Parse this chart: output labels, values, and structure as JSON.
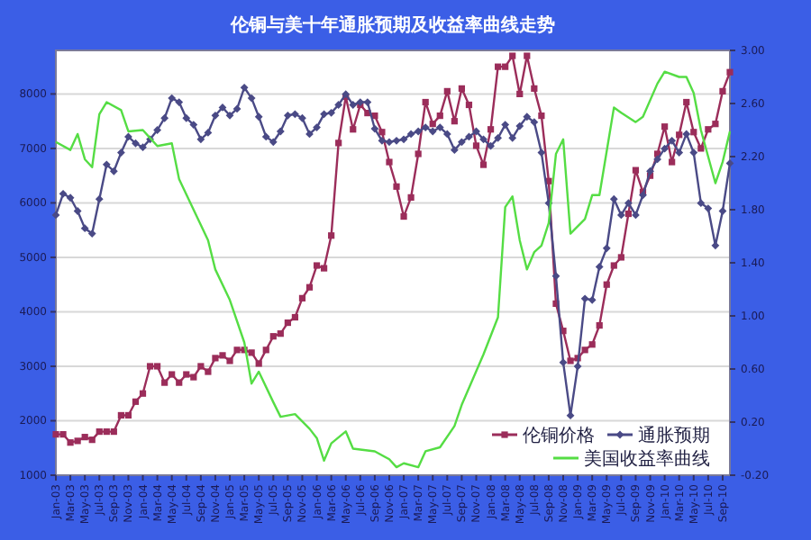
{
  "chart_data": {
    "type": "line",
    "title": "伦铜与美十年通胀预期及收益率曲线走势",
    "grid": "y",
    "legend": "bottom right",
    "xlim": [
      "2003-01",
      "2010-10"
    ],
    "xticks": [
      {
        "value": "2003-01",
        "label": "Jan-03"
      },
      {
        "value": "2003-03",
        "label": "Mar-03"
      },
      {
        "value": "2003-05",
        "label": "May-03"
      },
      {
        "value": "2003-07",
        "label": "Jul-03"
      },
      {
        "value": "2003-09",
        "label": "Sep-03"
      },
      {
        "value": "2003-11",
        "label": "Nov-03"
      },
      {
        "value": "2004-01",
        "label": "Jan-04"
      },
      {
        "value": "2004-03",
        "label": "Mar-04"
      },
      {
        "value": "2004-05",
        "label": "May-04"
      },
      {
        "value": "2004-07",
        "label": "Jul-04"
      },
      {
        "value": "2004-09",
        "label": "Sep-04"
      },
      {
        "value": "2004-11",
        "label": "Nov-04"
      },
      {
        "value": "2005-01",
        "label": "Jan-05"
      },
      {
        "value": "2005-03",
        "label": "Mar-05"
      },
      {
        "value": "2005-05",
        "label": "May-05"
      },
      {
        "value": "2005-07",
        "label": "Jul-05"
      },
      {
        "value": "2005-09",
        "label": "Sep-05"
      },
      {
        "value": "2005-11",
        "label": "Nov-05"
      },
      {
        "value": "2006-01",
        "label": "Jan-06"
      },
      {
        "value": "2006-03",
        "label": "Mar-06"
      },
      {
        "value": "2006-05",
        "label": "May-06"
      },
      {
        "value": "2006-07",
        "label": "Jul-06"
      },
      {
        "value": "2006-09",
        "label": "Sep-06"
      },
      {
        "value": "2006-11",
        "label": "Nov-06"
      },
      {
        "value": "2007-01",
        "label": "Jan-07"
      },
      {
        "value": "2007-03",
        "label": "Mar-07"
      },
      {
        "value": "2007-05",
        "label": "May-07"
      },
      {
        "value": "2007-07",
        "label": "Jul-07"
      },
      {
        "value": "2007-09",
        "label": "Sep-07"
      },
      {
        "value": "2007-11",
        "label": "Nov-07"
      },
      {
        "value": "2008-01",
        "label": "Jan-08"
      },
      {
        "value": "2008-03",
        "label": "Mar-08"
      },
      {
        "value": "2008-05",
        "label": "May-08"
      },
      {
        "value": "2008-07",
        "label": "Jul-08"
      },
      {
        "value": "2008-09",
        "label": "Sep-08"
      },
      {
        "value": "2008-11",
        "label": "Nov-08"
      },
      {
        "value": "2009-01",
        "label": "Jan-09"
      },
      {
        "value": "2009-03",
        "label": "Mar-09"
      },
      {
        "value": "2009-05",
        "label": "May-09"
      },
      {
        "value": "2009-07",
        "label": "Jul-09"
      },
      {
        "value": "2009-09",
        "label": "Sep-09"
      },
      {
        "value": "2009-11",
        "label": "Nov-09"
      },
      {
        "value": "2010-01",
        "label": "Jan-10"
      },
      {
        "value": "2010-03",
        "label": "Mar-10"
      },
      {
        "value": "2010-05",
        "label": "May-10"
      },
      {
        "value": "2010-07",
        "label": "Jul-10"
      },
      {
        "value": "2010-09",
        "label": "Sep-10"
      }
    ],
    "ylim": [
      1000,
      8800
    ],
    "yticks": [
      1000,
      2000,
      3000,
      4000,
      5000,
      6000,
      7000,
      8000
    ],
    "y2lim": [
      -0.2,
      3.0
    ],
    "y2ticks": [
      {
        "value": -0.2,
        "label": "-0.20"
      },
      {
        "value": 0.2,
        "label": "0.20"
      },
      {
        "value": 0.6,
        "label": "0.60"
      },
      {
        "value": 1.0,
        "label": "1.00"
      },
      {
        "value": 1.4,
        "label": "1.40"
      },
      {
        "value": 1.8,
        "label": "1.80"
      },
      {
        "value": 2.2,
        "label": "2.20"
      },
      {
        "value": 2.6,
        "label": "2.60"
      },
      {
        "value": 3.0,
        "label": "3.00"
      }
    ],
    "x": [
      "2003-01",
      "2003-02",
      "2003-03",
      "2003-04",
      "2003-05",
      "2003-06",
      "2003-07",
      "2003-08",
      "2003-09",
      "2003-10",
      "2003-11",
      "2003-12",
      "2004-01",
      "2004-02",
      "2004-03",
      "2004-04",
      "2004-05",
      "2004-06",
      "2004-07",
      "2004-08",
      "2004-09",
      "2004-10",
      "2004-11",
      "2004-12",
      "2005-01",
      "2005-02",
      "2005-03",
      "2005-04",
      "2005-05",
      "2005-06",
      "2005-07",
      "2005-08",
      "2005-09",
      "2005-10",
      "2005-11",
      "2005-12",
      "2006-01",
      "2006-02",
      "2006-03",
      "2006-04",
      "2006-05",
      "2006-06",
      "2006-07",
      "2006-08",
      "2006-09",
      "2006-10",
      "2006-11",
      "2006-12",
      "2007-01",
      "2007-02",
      "2007-03",
      "2007-04",
      "2007-05",
      "2007-06",
      "2007-07",
      "2007-08",
      "2007-09",
      "2007-10",
      "2007-11",
      "2007-12",
      "2008-01",
      "2008-02",
      "2008-03",
      "2008-04",
      "2008-05",
      "2008-06",
      "2008-07",
      "2008-08",
      "2008-09",
      "2008-10",
      "2008-11",
      "2008-12",
      "2009-01",
      "2009-02",
      "2009-03",
      "2009-04",
      "2009-05",
      "2009-06",
      "2009-07",
      "2009-08",
      "2009-09",
      "2009-10",
      "2009-11",
      "2009-12",
      "2010-01",
      "2010-02",
      "2010-03",
      "2010-04",
      "2010-05",
      "2010-06",
      "2010-07",
      "2010-08",
      "2010-09",
      "2010-10"
    ],
    "series": [
      {
        "name": "伦铜价格",
        "color": "#9b2d5a",
        "marker": "square",
        "values": [
          1750,
          1750,
          1600,
          1630,
          1700,
          1650,
          1800,
          1800,
          1800,
          2100,
          2100,
          2350,
          2500,
          3000,
          3000,
          2700,
          2850,
          2700,
          2850,
          2800,
          3000,
          2900,
          3150,
          3200,
          3100,
          3300,
          3300,
          3250,
          3050,
          3300,
          3550,
          3600,
          3800,
          3900,
          4250,
          4450,
          4850,
          4800,
          5400,
          7100,
          7950,
          7350,
          7800,
          7650,
          7600,
          7300,
          6750,
          6300,
          5750,
          6100,
          6900,
          7850,
          7450,
          7600,
          8050,
          7500,
          8100,
          7800,
          7050,
          6700,
          7350,
          8500,
          8500,
          8700,
          8000,
          8700,
          8100,
          7600,
          6400,
          4150,
          3650,
          3100,
          3150,
          3300,
          3400,
          3750,
          4500,
          4850,
          5000,
          5800,
          6600,
          6200,
          6500,
          6900,
          7400,
          6750,
          7250,
          7850,
          7300,
          7000,
          7350,
          7450,
          8050,
          8400
        ]
      },
      {
        "name": "通胀预期",
        "color": "#4a4a86",
        "marker": "diamond",
        "axis": "y2",
        "values": [
          1.76,
          1.92,
          1.89,
          1.79,
          1.66,
          1.62,
          1.88,
          2.14,
          2.09,
          2.23,
          2.35,
          2.3,
          2.27,
          2.33,
          2.4,
          2.49,
          2.64,
          2.61,
          2.49,
          2.44,
          2.33,
          2.38,
          2.51,
          2.57,
          2.51,
          2.56,
          2.72,
          2.64,
          2.5,
          2.35,
          2.31,
          2.39,
          2.51,
          2.52,
          2.49,
          2.37,
          2.42,
          2.52,
          2.53,
          2.59,
          2.67,
          2.59,
          2.61,
          2.61,
          2.41,
          2.32,
          2.31,
          2.32,
          2.33,
          2.37,
          2.39,
          2.42,
          2.39,
          2.42,
          2.37,
          2.25,
          2.31,
          2.35,
          2.39,
          2.33,
          2.28,
          2.34,
          2.44,
          2.34,
          2.43,
          2.5,
          2.46,
          2.23,
          1.85,
          1.3,
          0.65,
          0.25,
          0.62,
          1.13,
          1.12,
          1.37,
          1.51,
          1.88,
          1.76,
          1.85,
          1.76,
          1.91,
          2.09,
          2.18,
          2.26,
          2.32,
          2.23,
          2.37,
          2.23,
          1.85,
          1.81,
          1.53,
          1.79,
          2.15
        ]
      },
      {
        "name": "美国收益率曲线",
        "color": "#55dd44",
        "marker": "none",
        "axis": "y2",
        "x": [
          "2003-01",
          "2003-03",
          "2003-04",
          "2003-05",
          "2003-06",
          "2003-07",
          "2003-08",
          "2003-10",
          "2003-11",
          "2004-01",
          "2004-02",
          "2004-03",
          "2004-05",
          "2004-06",
          "2004-08",
          "2004-10",
          "2004-11",
          "2005-01",
          "2005-03",
          "2005-04",
          "2005-05",
          "2005-07",
          "2005-08",
          "2005-10",
          "2005-12",
          "2006-01",
          "2006-02",
          "2006-03",
          "2006-05",
          "2006-06",
          "2006-09",
          "2006-11",
          "2006-12",
          "2007-01",
          "2007-03",
          "2007-04",
          "2007-06",
          "2007-08",
          "2007-09",
          "2007-12",
          "2008-02",
          "2008-03",
          "2008-04",
          "2008-05",
          "2008-06",
          "2008-07",
          "2008-08",
          "2008-09",
          "2008-10",
          "2008-11",
          "2008-12",
          "2009-02",
          "2009-03",
          "2009-04",
          "2009-06",
          "2009-07",
          "2009-09",
          "2009-10",
          "2009-12",
          "2010-01",
          "2010-03",
          "2010-04",
          "2010-05",
          "2010-06",
          "2010-08",
          "2010-09",
          "2010-10"
        ],
        "values": [
          2.31,
          2.25,
          2.37,
          2.18,
          2.12,
          2.52,
          2.61,
          2.55,
          2.39,
          2.4,
          2.34,
          2.28,
          2.3,
          2.03,
          1.8,
          1.57,
          1.35,
          1.12,
          0.8,
          0.49,
          0.58,
          0.35,
          0.24,
          0.26,
          0.15,
          0.08,
          -0.09,
          0.04,
          0.13,
          0.0,
          -0.02,
          -0.08,
          -0.14,
          -0.11,
          -0.14,
          -0.02,
          0.01,
          0.17,
          0.33,
          0.71,
          0.99,
          1.82,
          1.9,
          1.57,
          1.35,
          1.48,
          1.53,
          1.7,
          2.22,
          2.33,
          1.62,
          1.73,
          1.91,
          1.91,
          2.57,
          2.53,
          2.46,
          2.5,
          2.75,
          2.84,
          2.8,
          2.8,
          2.68,
          2.4,
          2.0,
          2.16,
          2.39
        ]
      }
    ]
  }
}
